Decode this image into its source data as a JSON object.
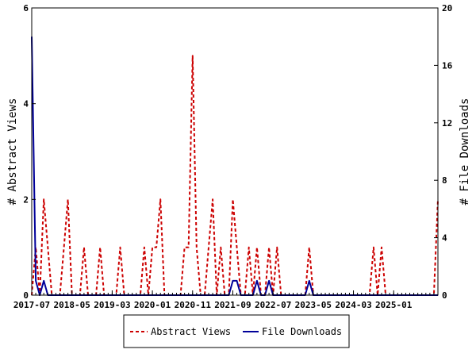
{
  "colors": {
    "abstract_views": "#cc0000",
    "file_downloads": "#000099",
    "axis": "#000000",
    "background": "#ffffff"
  },
  "chart_data": {
    "type": "line",
    "title": "",
    "xlabel": "",
    "ylabel_left": "# Abstract Views",
    "ylabel_right": "# File Downloads",
    "ylim_left": [
      0,
      6
    ],
    "ylim_right": [
      0,
      20
    ],
    "yticks_left": [
      0,
      2,
      4,
      6
    ],
    "yticks_right": [
      0,
      4,
      8,
      12,
      16,
      20
    ],
    "x_range": [
      "2017-07",
      "2025-12"
    ],
    "x_tick_labels": [
      "2017-07",
      "2018-05",
      "2019-03",
      "2020-01",
      "2020-11",
      "2021-09",
      "2022-07",
      "2023-05",
      "2024-03",
      "2025-01"
    ],
    "grid": false,
    "legend_position": "bottom",
    "series": [
      {
        "name": "Abstract Views",
        "axis": "left",
        "style": "dashed",
        "points": [
          [
            "2017-07",
            0
          ],
          [
            "2017-08",
            1
          ],
          [
            "2017-09",
            0
          ],
          [
            "2017-10",
            2
          ],
          [
            "2017-11",
            1
          ],
          [
            "2017-12",
            0
          ],
          [
            "2018-01",
            0
          ],
          [
            "2018-02",
            0
          ],
          [
            "2018-03",
            1
          ],
          [
            "2018-04",
            2
          ],
          [
            "2018-05",
            0
          ],
          [
            "2018-06",
            0
          ],
          [
            "2018-07",
            0
          ],
          [
            "2018-08",
            1
          ],
          [
            "2018-09",
            0
          ],
          [
            "2018-10",
            0
          ],
          [
            "2018-11",
            0
          ],
          [
            "2018-12",
            1
          ],
          [
            "2019-01",
            0
          ],
          [
            "2019-02",
            0
          ],
          [
            "2019-03",
            0
          ],
          [
            "2019-04",
            0
          ],
          [
            "2019-05",
            1
          ],
          [
            "2019-06",
            0
          ],
          [
            "2019-07",
            0
          ],
          [
            "2019-08",
            0
          ],
          [
            "2019-09",
            0
          ],
          [
            "2019-10",
            0
          ],
          [
            "2019-11",
            1
          ],
          [
            "2019-12",
            0
          ],
          [
            "2020-01",
            1
          ],
          [
            "2020-02",
            1
          ],
          [
            "2020-03",
            2
          ],
          [
            "2020-04",
            0
          ],
          [
            "2020-05",
            0
          ],
          [
            "2020-06",
            0
          ],
          [
            "2020-07",
            0
          ],
          [
            "2020-08",
            0
          ],
          [
            "2020-09",
            1
          ],
          [
            "2020-10",
            1
          ],
          [
            "2020-11",
            5
          ],
          [
            "2020-12",
            1
          ],
          [
            "2021-01",
            0
          ],
          [
            "2021-02",
            0
          ],
          [
            "2021-03",
            1
          ],
          [
            "2021-04",
            2
          ],
          [
            "2021-05",
            0
          ],
          [
            "2021-06",
            1
          ],
          [
            "2021-07",
            0
          ],
          [
            "2021-08",
            0
          ],
          [
            "2021-09",
            2
          ],
          [
            "2021-10",
            1
          ],
          [
            "2021-11",
            0
          ],
          [
            "2021-12",
            0
          ],
          [
            "2022-01",
            1
          ],
          [
            "2022-02",
            0
          ],
          [
            "2022-03",
            1
          ],
          [
            "2022-04",
            0
          ],
          [
            "2022-05",
            0
          ],
          [
            "2022-06",
            1
          ],
          [
            "2022-07",
            0
          ],
          [
            "2022-08",
            1
          ],
          [
            "2022-09",
            0
          ],
          [
            "2022-10",
            0
          ],
          [
            "2022-11",
            0
          ],
          [
            "2022-12",
            0
          ],
          [
            "2023-01",
            0
          ],
          [
            "2023-02",
            0
          ],
          [
            "2023-03",
            0
          ],
          [
            "2023-04",
            1
          ],
          [
            "2023-05",
            0
          ],
          [
            "2023-06",
            0
          ],
          [
            "2023-07",
            0
          ],
          [
            "2023-08",
            0
          ],
          [
            "2023-09",
            0
          ],
          [
            "2023-10",
            0
          ],
          [
            "2023-11",
            0
          ],
          [
            "2023-12",
            0
          ],
          [
            "2024-01",
            0
          ],
          [
            "2024-02",
            0
          ],
          [
            "2024-03",
            0
          ],
          [
            "2024-04",
            0
          ],
          [
            "2024-05",
            0
          ],
          [
            "2024-06",
            0
          ],
          [
            "2024-07",
            0
          ],
          [
            "2024-08",
            1
          ],
          [
            "2024-09",
            0
          ],
          [
            "2024-10",
            1
          ],
          [
            "2024-11",
            0
          ],
          [
            "2024-12",
            0
          ],
          [
            "2025-01",
            0
          ],
          [
            "2025-02",
            0
          ],
          [
            "2025-03",
            0
          ],
          [
            "2025-04",
            0
          ],
          [
            "2025-05",
            0
          ],
          [
            "2025-06",
            0
          ],
          [
            "2025-07",
            0
          ],
          [
            "2025-08",
            0
          ],
          [
            "2025-09",
            0
          ],
          [
            "2025-10",
            0
          ],
          [
            "2025-11",
            0
          ],
          [
            "2025-12",
            2
          ]
        ]
      },
      {
        "name": "File Downloads",
        "axis": "right",
        "style": "solid",
        "points": [
          [
            "2017-07",
            18
          ],
          [
            "2017-08",
            1
          ],
          [
            "2017-09",
            0
          ],
          [
            "2017-10",
            1
          ],
          [
            "2017-11",
            0
          ],
          [
            "2017-12",
            0
          ],
          [
            "2018-01",
            0
          ],
          [
            "2018-06",
            0
          ],
          [
            "2019-01",
            0
          ],
          [
            "2020-01",
            0
          ],
          [
            "2021-01",
            0
          ],
          [
            "2021-06",
            0
          ],
          [
            "2021-08",
            0
          ],
          [
            "2021-09",
            1
          ],
          [
            "2021-10",
            1
          ],
          [
            "2021-11",
            0
          ],
          [
            "2022-01",
            0
          ],
          [
            "2022-02",
            0
          ],
          [
            "2022-03",
            1
          ],
          [
            "2022-04",
            0
          ],
          [
            "2022-05",
            0
          ],
          [
            "2022-06",
            1
          ],
          [
            "2022-07",
            0
          ],
          [
            "2023-03",
            0
          ],
          [
            "2023-04",
            1
          ],
          [
            "2023-05",
            0
          ],
          [
            "2024-01",
            0
          ],
          [
            "2025-01",
            0
          ],
          [
            "2025-12",
            0
          ]
        ]
      }
    ]
  }
}
